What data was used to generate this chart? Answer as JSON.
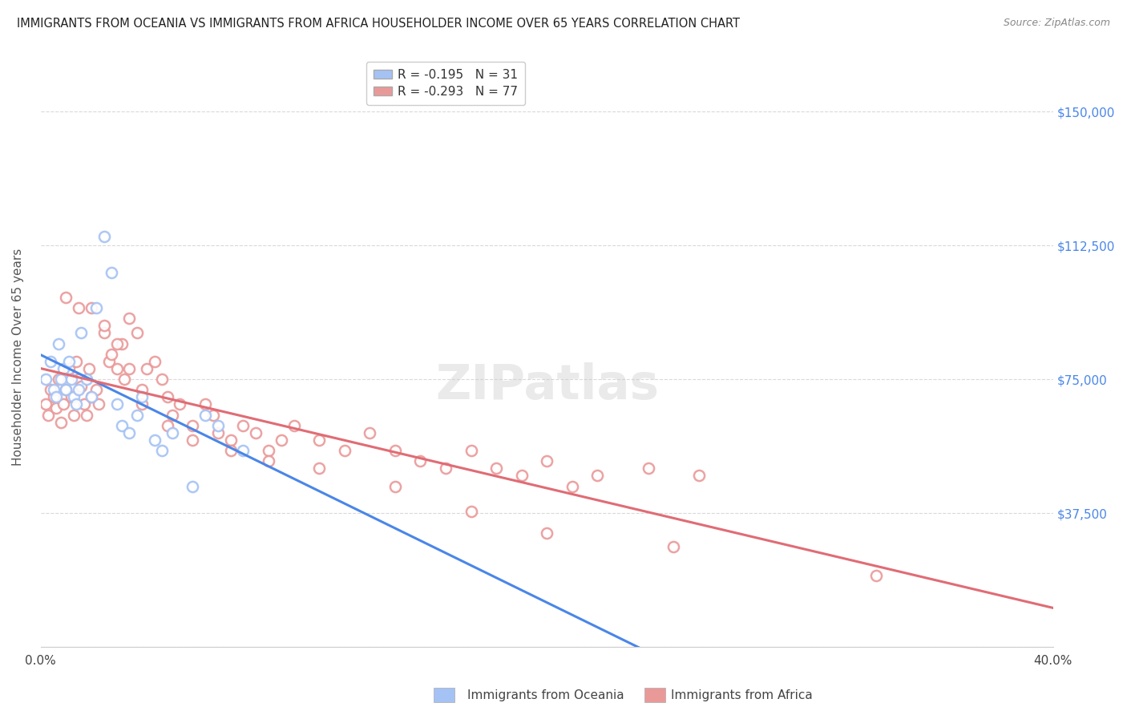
{
  "title": "IMMIGRANTS FROM OCEANIA VS IMMIGRANTS FROM AFRICA HOUSEHOLDER INCOME OVER 65 YEARS CORRELATION CHART",
  "source": "Source: ZipAtlas.com",
  "ylabel": "Householder Income Over 65 years",
  "xlim": [
    0.0,
    0.4
  ],
  "ylim": [
    0,
    162500
  ],
  "yticks": [
    0,
    37500,
    75000,
    112500,
    150000
  ],
  "ytick_labels": [
    "",
    "$37,500",
    "$75,000",
    "$112,500",
    "$150,000"
  ],
  "legend1_label": "R = -0.195   N = 31",
  "legend2_label": "R = -0.293   N = 77",
  "color_oceania": "#a4c2f4",
  "color_africa": "#ea9999",
  "trendline_color_oceania": "#4a86e8",
  "trendline_color_africa": "#e06c75",
  "background_color": "#ffffff",
  "grid_color": "#d9d9d9",
  "oceania_x": [
    0.002,
    0.004,
    0.005,
    0.006,
    0.007,
    0.008,
    0.009,
    0.01,
    0.011,
    0.012,
    0.013,
    0.014,
    0.015,
    0.016,
    0.018,
    0.02,
    0.022,
    0.025,
    0.028,
    0.03,
    0.032,
    0.035,
    0.038,
    0.04,
    0.045,
    0.048,
    0.052,
    0.06,
    0.065,
    0.07,
    0.08
  ],
  "oceania_y": [
    75000,
    80000,
    72000,
    70000,
    85000,
    75000,
    78000,
    72000,
    80000,
    75000,
    70000,
    68000,
    72000,
    88000,
    75000,
    70000,
    95000,
    115000,
    105000,
    68000,
    62000,
    60000,
    65000,
    70000,
    58000,
    55000,
    60000,
    45000,
    65000,
    62000,
    55000
  ],
  "africa_x": [
    0.002,
    0.003,
    0.004,
    0.005,
    0.006,
    0.007,
    0.008,
    0.009,
    0.01,
    0.011,
    0.012,
    0.013,
    0.014,
    0.015,
    0.016,
    0.017,
    0.018,
    0.019,
    0.02,
    0.022,
    0.023,
    0.025,
    0.027,
    0.028,
    0.03,
    0.032,
    0.033,
    0.035,
    0.038,
    0.04,
    0.042,
    0.045,
    0.048,
    0.05,
    0.052,
    0.055,
    0.06,
    0.065,
    0.068,
    0.07,
    0.075,
    0.08,
    0.085,
    0.09,
    0.095,
    0.1,
    0.11,
    0.12,
    0.13,
    0.14,
    0.15,
    0.16,
    0.17,
    0.18,
    0.19,
    0.2,
    0.21,
    0.22,
    0.24,
    0.26,
    0.01,
    0.015,
    0.02,
    0.025,
    0.03,
    0.035,
    0.04,
    0.05,
    0.06,
    0.075,
    0.09,
    0.11,
    0.14,
    0.17,
    0.2,
    0.25,
    0.33
  ],
  "africa_y": [
    68000,
    65000,
    72000,
    70000,
    67000,
    75000,
    63000,
    68000,
    72000,
    78000,
    70000,
    65000,
    80000,
    75000,
    73000,
    68000,
    65000,
    78000,
    70000,
    72000,
    68000,
    88000,
    80000,
    82000,
    78000,
    85000,
    75000,
    92000,
    88000,
    72000,
    78000,
    80000,
    75000,
    70000,
    65000,
    68000,
    62000,
    68000,
    65000,
    60000,
    58000,
    62000,
    60000,
    55000,
    58000,
    62000,
    58000,
    55000,
    60000,
    55000,
    52000,
    50000,
    55000,
    50000,
    48000,
    52000,
    45000,
    48000,
    50000,
    48000,
    98000,
    95000,
    95000,
    90000,
    85000,
    78000,
    68000,
    62000,
    58000,
    55000,
    52000,
    50000,
    45000,
    38000,
    32000,
    28000,
    20000
  ]
}
